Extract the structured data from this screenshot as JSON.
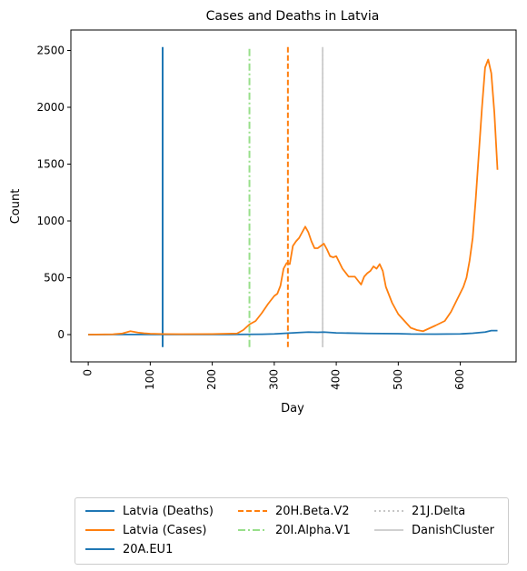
{
  "chart_data": {
    "type": "line",
    "title": "Cases and Deaths in Latvia",
    "xlabel": "Day",
    "ylabel": "Count",
    "xlim": [
      -28,
      690
    ],
    "ylim": [
      -240,
      2680
    ],
    "xticks": [
      0,
      100,
      200,
      300,
      400,
      500,
      600
    ],
    "yticks": [
      0,
      500,
      1000,
      1500,
      2000,
      2500
    ],
    "xtick_rotation": 90,
    "grid": false,
    "legend_placement": "below",
    "series": [
      {
        "name": "Latvia (Deaths)",
        "color": "#1f77b4",
        "style": "solid",
        "x": [
          0,
          50,
          100,
          150,
          200,
          250,
          280,
          300,
          320,
          340,
          355,
          370,
          380,
          400,
          450,
          500,
          520,
          560,
          600,
          620,
          640,
          650,
          660
        ],
        "y": [
          0,
          1,
          1,
          1,
          1,
          2,
          3,
          6,
          12,
          18,
          22,
          20,
          22,
          15,
          10,
          8,
          5,
          4,
          6,
          12,
          22,
          35,
          35
        ]
      },
      {
        "name": "Latvia (Cases)",
        "color": "#ff7f0e",
        "style": "solid",
        "x": [
          0,
          40,
          55,
          68,
          80,
          90,
          100,
          120,
          150,
          200,
          240,
          250,
          260,
          270,
          280,
          290,
          300,
          305,
          310,
          315,
          320,
          325,
          330,
          335,
          340,
          345,
          350,
          355,
          360,
          365,
          370,
          375,
          380,
          385,
          390,
          395,
          400,
          410,
          420,
          430,
          440,
          445,
          450,
          455,
          460,
          465,
          470,
          475,
          480,
          490,
          500,
          510,
          520,
          530,
          540,
          560,
          575,
          585,
          595,
          605,
          610,
          615,
          620,
          625,
          630,
          635,
          640,
          645,
          650,
          655,
          660
        ],
        "y": [
          0,
          3,
          10,
          30,
          18,
          12,
          8,
          5,
          4,
          5,
          10,
          40,
          90,
          120,
          190,
          270,
          340,
          360,
          430,
          580,
          630,
          620,
          780,
          820,
          850,
          900,
          950,
          900,
          820,
          760,
          760,
          780,
          800,
          750,
          690,
          680,
          690,
          580,
          510,
          510,
          440,
          510,
          540,
          560,
          600,
          580,
          620,
          560,
          420,
          280,
          180,
          120,
          60,
          40,
          30,
          80,
          120,
          200,
          310,
          420,
          500,
          650,
          850,
          1200,
          1600,
          2000,
          2350,
          2420,
          2300,
          1950,
          1450
        ]
      }
    ],
    "markers": [
      {
        "name": "20A.EU1",
        "x": 120,
        "color": "#1f77b4",
        "style": "solid"
      },
      {
        "name": "20H.Beta.V2",
        "x": 322,
        "color": "#ff7f0e",
        "style": "dashed"
      },
      {
        "name": "20I.Alpha.V1",
        "x": 260,
        "color": "#98df8a",
        "style": "dashdot"
      },
      {
        "name": "21J.Delta",
        "x": 378,
        "color": "#c7c7c7",
        "style": "dotted"
      },
      {
        "name": "DanishCluster",
        "x": 378,
        "color": "#d0d0d0",
        "style": "solid"
      }
    ],
    "marker_range": [
      -110,
      2530
    ]
  }
}
